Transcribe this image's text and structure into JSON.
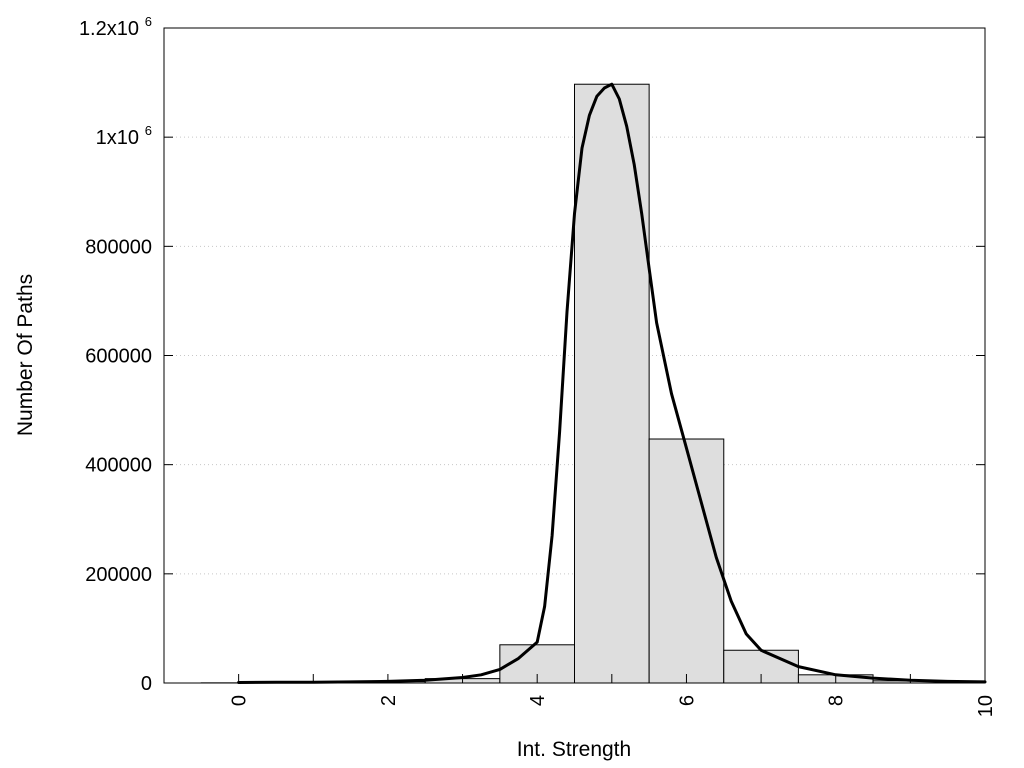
{
  "chart_data": {
    "type": "bar",
    "xlabel": "Int. Strength",
    "ylabel": "Number Of Paths",
    "xlim": [
      -1,
      10
    ],
    "ylim": [
      0,
      1200000
    ],
    "grid": true,
    "x_ticks": [
      {
        "value": 0,
        "label": "0"
      },
      {
        "value": 2,
        "label": "2"
      },
      {
        "value": 4,
        "label": "4"
      },
      {
        "value": 6,
        "label": "6"
      },
      {
        "value": 8,
        "label": "8"
      },
      {
        "value": 10,
        "label": "10"
      }
    ],
    "y_ticks": [
      {
        "value": 0,
        "label": "0"
      },
      {
        "value": 200000,
        "label": "200000"
      },
      {
        "value": 400000,
        "label": "400000"
      },
      {
        "value": 600000,
        "label": "600000"
      },
      {
        "value": 800000,
        "label": "800000"
      },
      {
        "value": 1000000,
        "label": "1x10",
        "sup": "6"
      },
      {
        "value": 1200000,
        "label": "1.2x10",
        "sup": "6"
      }
    ],
    "bars": {
      "width": 1,
      "color": "#dedede",
      "x": [
        0,
        1,
        2,
        3,
        4,
        5,
        6,
        7,
        8,
        9,
        10
      ],
      "values": [
        300,
        800,
        2500,
        8000,
        70000,
        1097000,
        447000,
        60000,
        15000,
        4000,
        1500
      ]
    },
    "curve": {
      "color": "#000000",
      "x": [
        0,
        0.5,
        1,
        1.5,
        2,
        2.5,
        3,
        3.25,
        3.5,
        3.75,
        4,
        4.1,
        4.2,
        4.3,
        4.4,
        4.5,
        4.6,
        4.7,
        4.8,
        4.9,
        5,
        5.1,
        5.2,
        5.3,
        5.4,
        5.5,
        5.6,
        5.8,
        6,
        6.2,
        6.4,
        6.6,
        6.8,
        7,
        7.5,
        8,
        8.5,
        9,
        9.5,
        10
      ],
      "y": [
        1000,
        1200,
        1500,
        2000,
        3000,
        5000,
        10000,
        15000,
        25000,
        45000,
        75000,
        140000,
        270000,
        460000,
        680000,
        860000,
        980000,
        1040000,
        1075000,
        1090000,
        1097000,
        1070000,
        1020000,
        950000,
        860000,
        760000,
        660000,
        530000,
        430000,
        330000,
        230000,
        150000,
        90000,
        60000,
        30000,
        15000,
        9000,
        5000,
        3000,
        2000
      ]
    }
  }
}
